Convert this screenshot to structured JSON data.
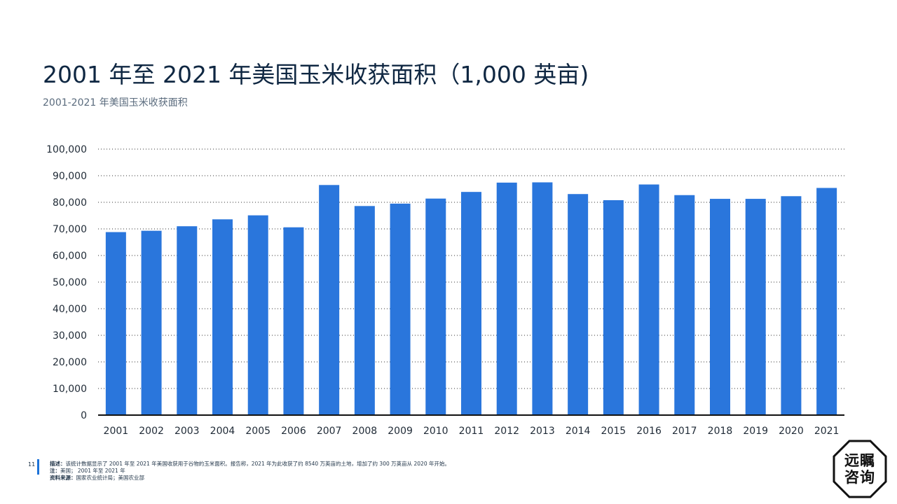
{
  "header": {
    "title": "2001 年至 2021 年美国玉米收获面积（1,000 英亩)",
    "subtitle": "2001-2021 年美国玉米收获面积"
  },
  "footer": {
    "page_number": "11",
    "description_label": "描述：",
    "description": "该统计数据显示了 2001 年至 2021 年美国收获用于谷物的玉米面积。报告称，2021 年为此收获了约 8540 万英亩的土地，增加了约 300 万英亩从 2020 年开始。",
    "note_label": "注：",
    "note": "美国； 2001 年至 2021 年",
    "source_label": "资料来源：",
    "source": "国家农业统计局；美国农业部"
  },
  "logo": {
    "line1": "远瞩",
    "line2": "咨询"
  },
  "colors": {
    "bar": "#2a76dc",
    "title": "#0f2742",
    "accent": "#1e73d8"
  },
  "chart_data": {
    "type": "bar",
    "title": "2001 年至 2021 年美国玉米收获面积（1,000 英亩)",
    "categories": [
      "2001",
      "2002",
      "2003",
      "2004",
      "2005",
      "2006",
      "2007",
      "2008",
      "2009",
      "2010",
      "2011",
      "2012",
      "2013",
      "2014",
      "2015",
      "2016",
      "2017",
      "2018",
      "2019",
      "2020",
      "2021"
    ],
    "values": [
      68800,
      69300,
      71000,
      73600,
      75100,
      70600,
      86500,
      78600,
      79500,
      81400,
      83900,
      87400,
      87500,
      83100,
      80800,
      86700,
      82700,
      81300,
      81300,
      82300,
      85400
    ],
    "ylim": [
      0,
      100000
    ],
    "yticks": [
      0,
      10000,
      20000,
      30000,
      40000,
      50000,
      60000,
      70000,
      80000,
      90000,
      100000
    ],
    "ytick_labels": [
      "0",
      "10,000",
      "20,000",
      "30,000",
      "40,000",
      "50,000",
      "60,000",
      "70,000",
      "80,000",
      "90,000",
      "100,000"
    ],
    "grid": true,
    "legend": "none"
  }
}
